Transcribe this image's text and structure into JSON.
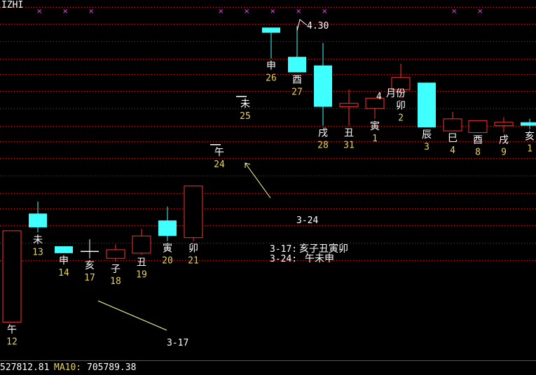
{
  "header": {
    "title": "IZHI"
  },
  "chart_data": {
    "type": "candlestick",
    "colors": {
      "up": "#ff3030",
      "down": "#40ffff",
      "grid": "#cc2222",
      "marker": "#ff40ff",
      "branch": "#ffffff",
      "count": "#e6d35a",
      "arrow": "#ffff99",
      "text": "#ffffff"
    },
    "candles": [
      {
        "branch": "午",
        "count": "12",
        "open": 3.58,
        "close": 4.11,
        "high": 4.11,
        "low": 3.58,
        "dir": "up"
      },
      {
        "branch": "未",
        "count": "13",
        "open": 4.21,
        "close": 4.13,
        "high": 4.28,
        "low": 4.1,
        "dir": "down"
      },
      {
        "branch": "申",
        "count": "14",
        "open": 4.02,
        "close": 3.98,
        "high": 4.02,
        "low": 3.98,
        "dir": "down"
      },
      {
        "branch": "亥",
        "count": "17",
        "open": 3.99,
        "close": 3.99,
        "high": 4.06,
        "low": 3.95,
        "dir": "flat"
      },
      {
        "branch": "子",
        "count": "18",
        "open": 3.95,
        "close": 4.0,
        "high": 4.03,
        "low": 3.93,
        "dir": "up"
      },
      {
        "branch": "丑",
        "count": "19",
        "open": 3.98,
        "close": 4.08,
        "high": 4.12,
        "low": 3.97,
        "dir": "up"
      },
      {
        "branch": "寅",
        "count": "20",
        "open": 4.17,
        "close": 4.08,
        "high": 4.25,
        "low": 4.05,
        "dir": "down"
      },
      {
        "branch": "卯",
        "count": "21",
        "open": 4.07,
        "close": 4.37,
        "high": 4.37,
        "low": 4.05,
        "dir": "up"
      },
      {
        "branch": "午",
        "count": "24",
        "open": 4.61,
        "close": 4.61,
        "high": 4.61,
        "low": 4.61,
        "dir": "flat",
        "tick": true
      },
      {
        "branch": "未",
        "count": "25",
        "open": 4.89,
        "close": 4.89,
        "high": 4.89,
        "low": 4.89,
        "dir": "flat",
        "tick": true
      },
      {
        "branch": "申",
        "count": "26",
        "open": 5.29,
        "close": 5.26,
        "high": 5.29,
        "low": 5.11,
        "dir": "down"
      },
      {
        "branch": "酉",
        "count": "27",
        "open": 5.12,
        "close": 5.03,
        "high": 5.3,
        "low": 5.03,
        "dir": "down"
      },
      {
        "branch": "戌",
        "count": "28",
        "open": 5.07,
        "close": 4.83,
        "high": 5.2,
        "low": 4.72,
        "dir": "down"
      },
      {
        "branch": "丑",
        "count": "31",
        "open": 4.83,
        "close": 4.85,
        "high": 4.93,
        "low": 4.72,
        "dir": "up"
      },
      {
        "branch": "寅",
        "count": "1",
        "open": 4.82,
        "close": 4.88,
        "high": 4.88,
        "low": 4.76,
        "dir": "up"
      },
      {
        "branch": "卯",
        "count": "2",
        "open": 4.93,
        "close": 5.0,
        "high": 5.08,
        "low": 4.88,
        "dir": "up"
      },
      {
        "branch": "辰",
        "count": "3",
        "open": 4.97,
        "close": 4.71,
        "high": 4.97,
        "low": 4.71,
        "dir": "down"
      },
      {
        "branch": "巳",
        "count": "4",
        "open": 4.69,
        "close": 4.76,
        "high": 4.8,
        "low": 4.69,
        "dir": "up"
      },
      {
        "branch": "酉",
        "count": "8",
        "open": 4.68,
        "close": 4.75,
        "high": 4.75,
        "low": 4.68,
        "dir": "up"
      },
      {
        "branch": "戌",
        "count": "9",
        "open": 4.72,
        "close": 4.74,
        "high": 4.77,
        "low": 4.68,
        "dir": "up"
      },
      {
        "branch": "亥",
        "count": "1",
        "open": 4.74,
        "close": 4.72,
        "high": 4.76,
        "low": 4.7,
        "dir": "down"
      }
    ],
    "ylim": [
      3.37,
      5.45
    ],
    "grid_levels": [
      5.41,
      5.31,
      5.21,
      5.11,
      5.02,
      4.92,
      4.82,
      4.72,
      4.63,
      4.53,
      4.43,
      4.33,
      4.24,
      4.14,
      4.04,
      3.94
    ],
    "peak_label": "4.30",
    "annotations": {
      "mark_a": "3-24",
      "mark_b": "3-17",
      "note1_date": "3-17:",
      "note1_text": "亥子丑寅卯",
      "note2_date": "3-24:",
      "note2_text": "午未申",
      "month_label": "月份",
      "month_num": "4"
    },
    "markers_count": 10
  },
  "footer": {
    "value": "527812.81",
    "ma_label": "MA10:",
    "ma_value": "705789.38"
  }
}
